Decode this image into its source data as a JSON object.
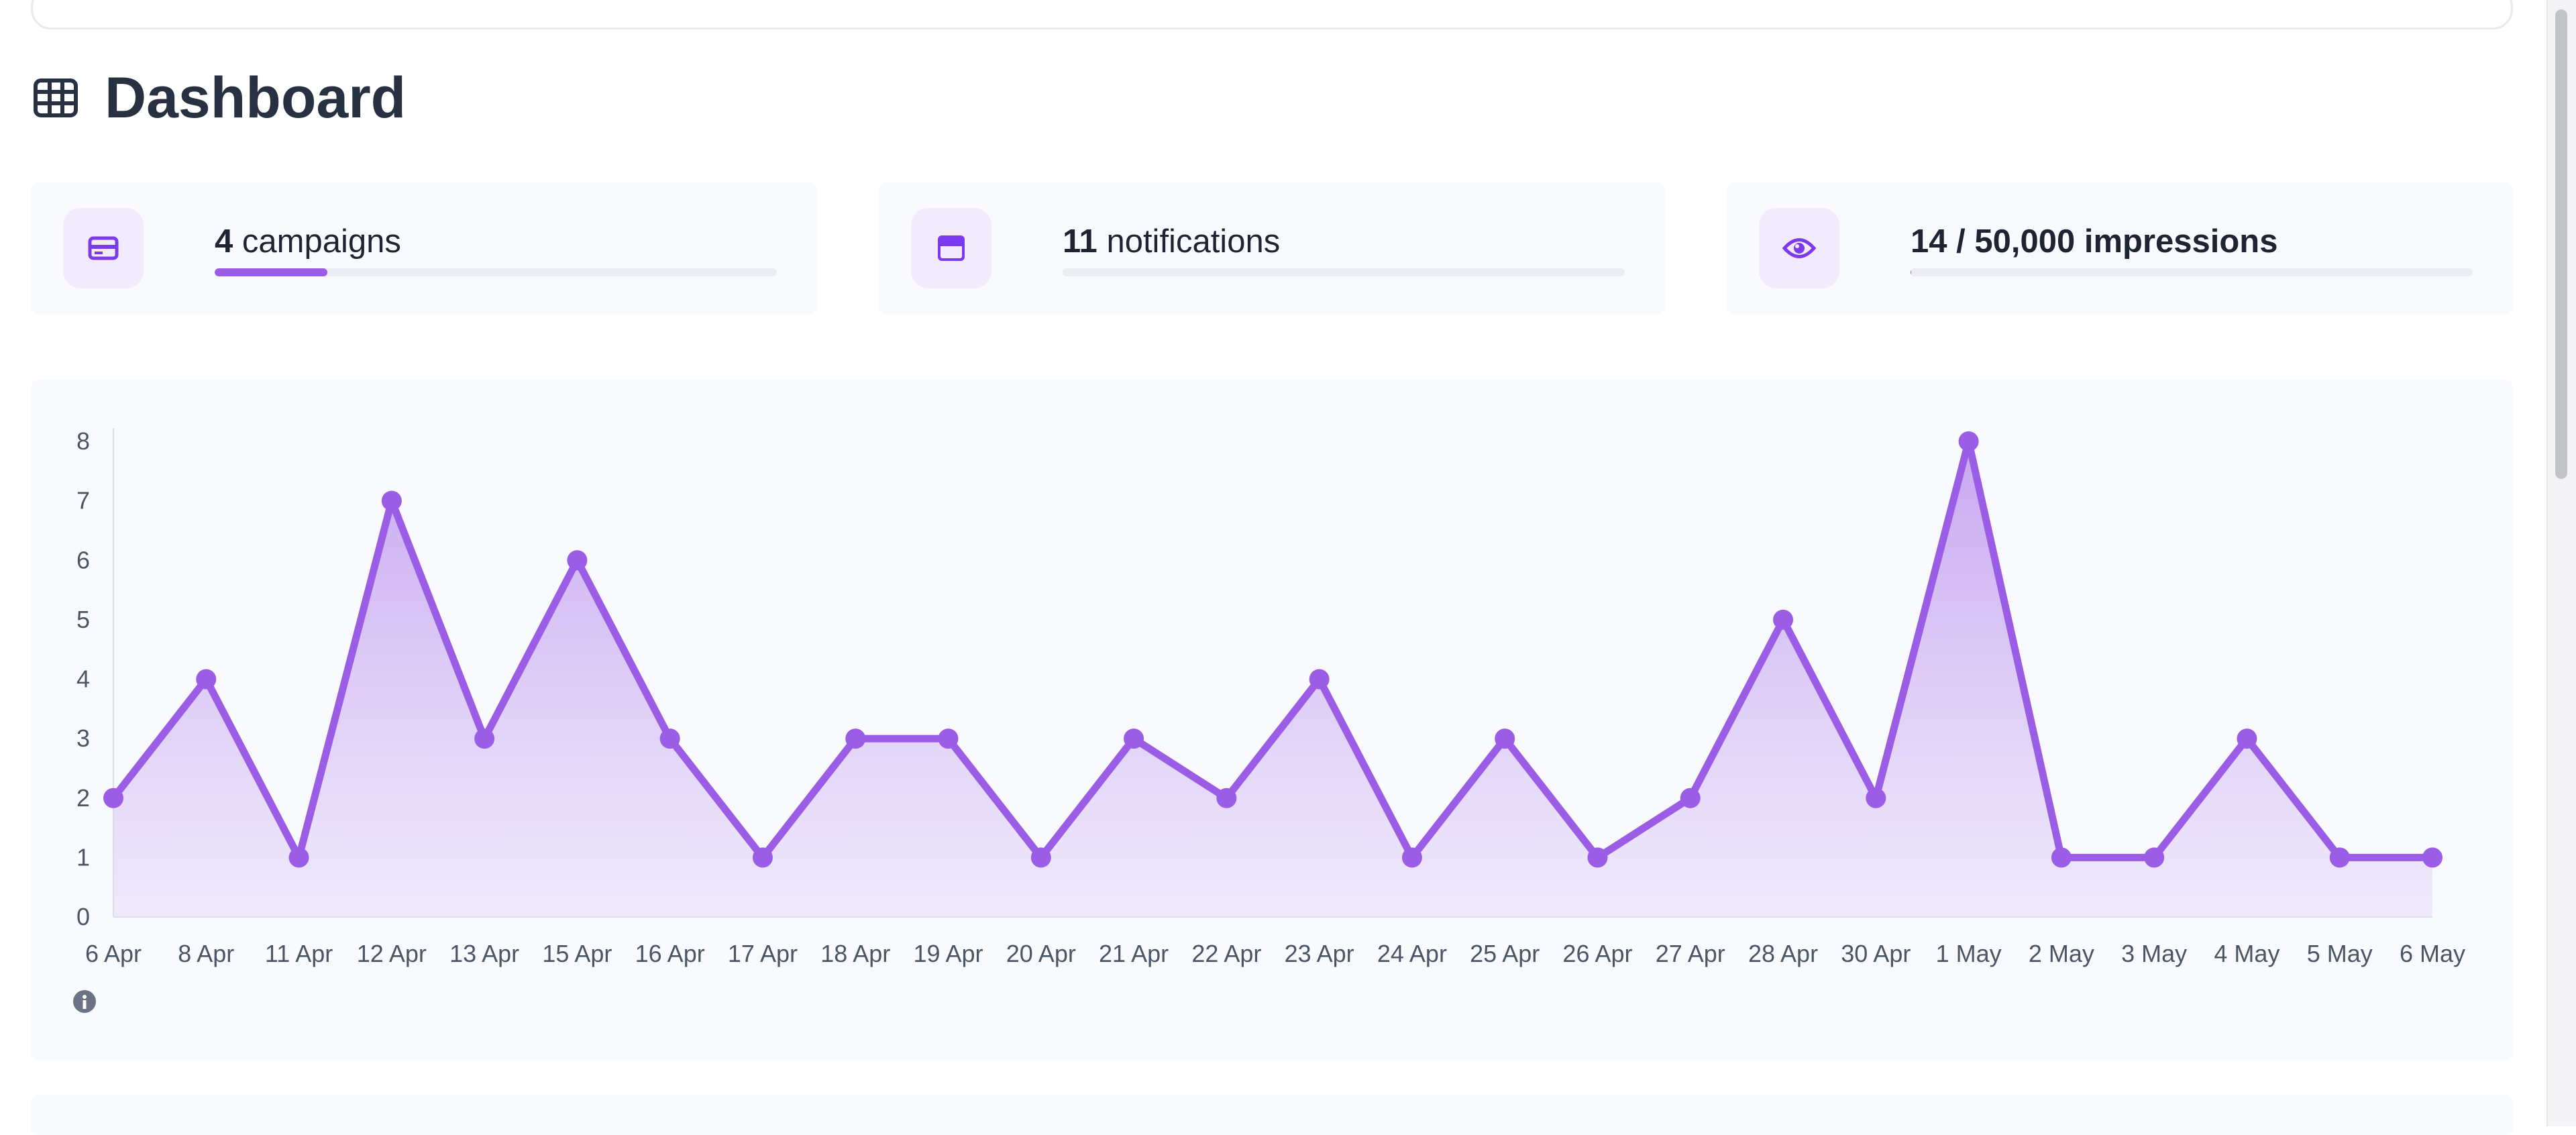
{
  "page": {
    "title": "Dashboard",
    "icon": "table-grid-icon"
  },
  "stats": [
    {
      "icon": "credit-card-icon",
      "count": "4",
      "label": "campaigns",
      "progress": 0.2
    },
    {
      "icon": "calendar-icon",
      "count": "11",
      "label": "notifications",
      "progress": 0
    },
    {
      "icon": "eye-icon",
      "text": "14 / 50,000 impressions",
      "progress": 0.0003
    }
  ],
  "colors": {
    "accent": "#9b5de5",
    "accent_light": "#f1ebfd",
    "title": "#273142",
    "axis_text": "#4b5563"
  },
  "chart_data": {
    "type": "area",
    "categories": [
      "6 Apr",
      "8 Apr",
      "11 Apr",
      "12 Apr",
      "13 Apr",
      "15 Apr",
      "16 Apr",
      "17 Apr",
      "18 Apr",
      "19 Apr",
      "20 Apr",
      "21 Apr",
      "22 Apr",
      "23 Apr",
      "24 Apr",
      "25 Apr",
      "26 Apr",
      "27 Apr",
      "28 Apr",
      "30 Apr",
      "1 May",
      "2 May",
      "3 May",
      "4 May",
      "5 May",
      "6 May"
    ],
    "values": [
      2,
      4,
      1,
      7,
      3,
      6,
      3,
      1,
      3,
      3,
      1,
      3,
      2,
      4,
      1,
      3,
      1,
      2,
      5,
      2,
      8,
      1,
      1,
      3,
      1,
      1
    ],
    "ylim": [
      0,
      8
    ],
    "yticks": [
      "0",
      "1",
      "2",
      "3",
      "4",
      "5",
      "6",
      "7",
      "8"
    ],
    "grid": false,
    "legend": "none",
    "info_icon": "info-icon"
  }
}
